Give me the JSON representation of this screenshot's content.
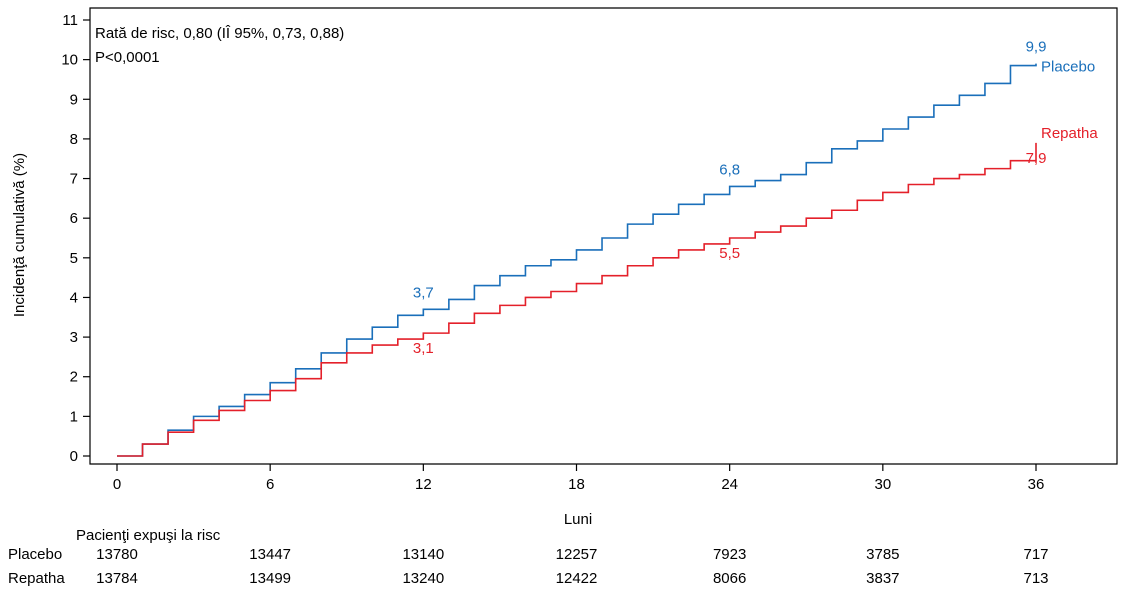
{
  "chart_data": {
    "type": "line",
    "title": "",
    "xlabel": "Luni",
    "ylabel": "Incidenţă cumulativă (%)",
    "xlim": [
      0,
      36
    ],
    "ylim": [
      0,
      11
    ],
    "x_ticks": [
      0,
      6,
      12,
      18,
      24,
      30,
      36
    ],
    "y_ticks": [
      0,
      1,
      2,
      3,
      4,
      5,
      6,
      7,
      8,
      9,
      10,
      11
    ],
    "grid": false,
    "annotation_lines": [
      "Rată de risc, 0,80 (IÎ 95%, 0,73, 0,88)",
      "P<0,0001"
    ],
    "colors": {
      "Placebo": "#1a6fba",
      "Repatha": "#e4202a",
      "axis": "#000000"
    },
    "series": [
      {
        "name": "Placebo",
        "x": [
          0,
          1,
          2,
          3,
          4,
          5,
          6,
          7,
          8,
          9,
          10,
          11,
          12,
          13,
          14,
          15,
          16,
          17,
          18,
          19,
          20,
          21,
          22,
          23,
          24,
          25,
          26,
          27,
          28,
          29,
          30,
          31,
          32,
          33,
          34,
          35,
          36
        ],
        "y": [
          0,
          0.3,
          0.65,
          1.0,
          1.25,
          1.55,
          1.85,
          2.2,
          2.6,
          2.95,
          3.25,
          3.55,
          3.7,
          3.95,
          4.3,
          4.55,
          4.8,
          4.95,
          5.2,
          5.5,
          5.85,
          6.1,
          6.35,
          6.6,
          6.8,
          6.95,
          7.1,
          7.4,
          7.75,
          7.95,
          8.25,
          8.55,
          8.85,
          9.1,
          9.4,
          9.85,
          9.9
        ],
        "point_labels": [
          {
            "x": 12,
            "y": 3.7,
            "text": "3,7"
          },
          {
            "x": 24,
            "y": 6.8,
            "text": "6,8"
          },
          {
            "x": 36,
            "y": 9.9,
            "text": "9,9"
          }
        ]
      },
      {
        "name": "Repatha",
        "x": [
          0,
          1,
          2,
          3,
          4,
          5,
          6,
          7,
          8,
          9,
          10,
          11,
          12,
          13,
          14,
          15,
          16,
          17,
          18,
          19,
          20,
          21,
          22,
          23,
          24,
          25,
          26,
          27,
          28,
          29,
          30,
          31,
          32,
          33,
          34,
          35,
          36
        ],
        "y": [
          0,
          0.3,
          0.6,
          0.9,
          1.15,
          1.4,
          1.65,
          1.95,
          2.35,
          2.6,
          2.8,
          2.95,
          3.1,
          3.35,
          3.6,
          3.8,
          4.0,
          4.15,
          4.35,
          4.55,
          4.8,
          5.0,
          5.2,
          5.35,
          5.5,
          5.65,
          5.8,
          6.0,
          6.2,
          6.45,
          6.65,
          6.85,
          7.0,
          7.1,
          7.25,
          7.45,
          7.9
        ],
        "point_labels": [
          {
            "x": 12,
            "y": 3.1,
            "text": "3,1"
          },
          {
            "x": 24,
            "y": 5.5,
            "text": "5,5"
          },
          {
            "x": 36,
            "y": 7.9,
            "text": "7,9"
          }
        ]
      }
    ],
    "risk_table": {
      "title": "Pacienţi expuşi la risc",
      "timepoints": [
        0,
        6,
        12,
        18,
        24,
        30,
        36
      ],
      "rows": [
        {
          "label": "Placebo",
          "values": [
            "13780",
            "13447",
            "13140",
            "12257",
            "7923",
            "3785",
            "717"
          ]
        },
        {
          "label": "Repatha",
          "values": [
            "13784",
            "13499",
            "13240",
            "12422",
            "8066",
            "3837",
            "713"
          ]
        }
      ]
    }
  }
}
